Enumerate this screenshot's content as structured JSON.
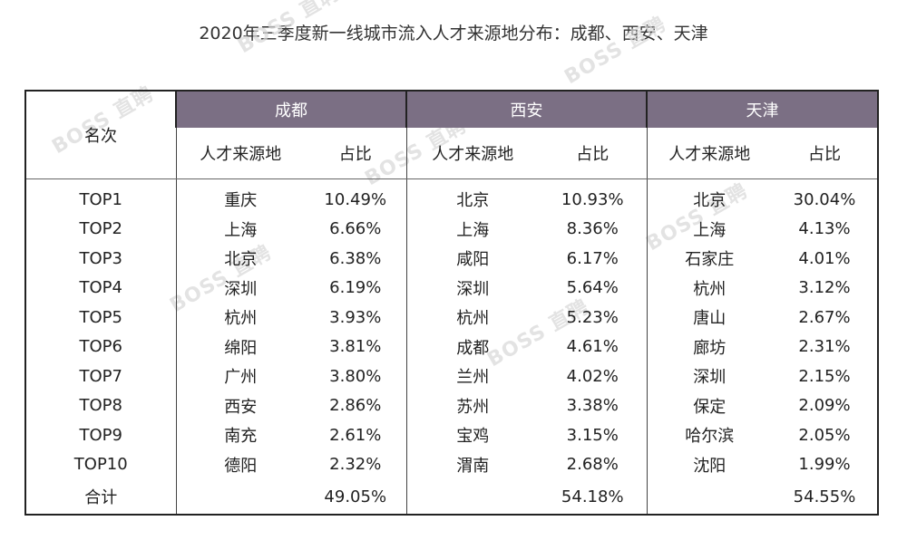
{
  "title": "2020年三季度新一线城市流入人才来源地分布：成都、西安、天津",
  "watermark": "BOSS 直聘",
  "header": {
    "rank_label": "名次",
    "source_label": "人才来源地",
    "share_label": "占比",
    "header_bg": "#7b6f84"
  },
  "cities": [
    {
      "name": "成都",
      "rows": [
        {
          "rank": "TOP1",
          "source": "重庆",
          "share": "10.49%"
        },
        {
          "rank": "TOP2",
          "source": "上海",
          "share": "6.66%"
        },
        {
          "rank": "TOP3",
          "source": "北京",
          "share": "6.38%"
        },
        {
          "rank": "TOP4",
          "source": "深圳",
          "share": "6.19%"
        },
        {
          "rank": "TOP5",
          "source": "杭州",
          "share": "3.93%"
        },
        {
          "rank": "TOP6",
          "source": "绵阳",
          "share": "3.81%"
        },
        {
          "rank": "TOP7",
          "source": "广州",
          "share": "3.80%"
        },
        {
          "rank": "TOP8",
          "source": "西安",
          "share": "2.86%"
        },
        {
          "rank": "TOP9",
          "source": "南充",
          "share": "2.61%"
        },
        {
          "rank": "TOP10",
          "source": "德阳",
          "share": "2.32%"
        }
      ],
      "total": "49.05%"
    },
    {
      "name": "西安",
      "rows": [
        {
          "source": "北京",
          "share": "10.93%"
        },
        {
          "source": "上海",
          "share": "8.36%"
        },
        {
          "source": "咸阳",
          "share": "6.17%"
        },
        {
          "source": "深圳",
          "share": "5.64%"
        },
        {
          "source": "杭州",
          "share": "5.23%"
        },
        {
          "source": "成都",
          "share": "4.61%"
        },
        {
          "source": "兰州",
          "share": "4.02%"
        },
        {
          "source": "苏州",
          "share": "3.38%"
        },
        {
          "source": "宝鸡",
          "share": "3.15%"
        },
        {
          "source": "渭南",
          "share": "2.68%"
        }
      ],
      "total": "54.18%"
    },
    {
      "name": "天津",
      "rows": [
        {
          "source": "北京",
          "share": "30.04%"
        },
        {
          "source": "上海",
          "share": "4.13%"
        },
        {
          "source": "石家庄",
          "share": "4.01%"
        },
        {
          "source": "杭州",
          "share": "3.12%"
        },
        {
          "source": "唐山",
          "share": "2.67%"
        },
        {
          "source": "廊坊",
          "share": "2.31%"
        },
        {
          "source": "深圳",
          "share": "2.15%"
        },
        {
          "source": "保定",
          "share": "2.09%"
        },
        {
          "source": "哈尔滨",
          "share": "2.05%"
        },
        {
          "source": "沈阳",
          "share": "1.99%"
        }
      ],
      "total": "54.55%"
    }
  ],
  "total_label": "合计"
}
